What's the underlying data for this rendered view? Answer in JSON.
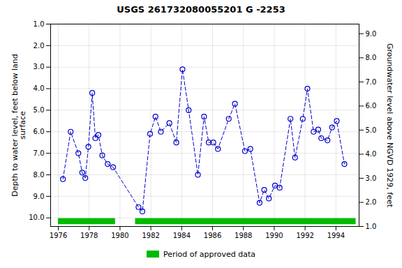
{
  "chart_data": {
    "type": "line",
    "title": "USGS 261732080055201 G  -2253",
    "ylabel": "Depth to water level, feet below land\nsurface",
    "y2label": "Groundwater level above NGVD 1929, feet",
    "x": [
      1976.3,
      1976.8,
      1977.3,
      1977.55,
      1977.75,
      1977.95,
      1978.2,
      1978.4,
      1978.6,
      1978.85,
      1979.2,
      1979.55,
      1981.2,
      1981.45,
      1981.95,
      1982.3,
      1982.65,
      1983.2,
      1983.65,
      1984.05,
      1984.45,
      1985.05,
      1985.45,
      1985.75,
      1986.05,
      1986.35,
      1987.05,
      1987.45,
      1988.1,
      1988.45,
      1989.05,
      1989.35,
      1989.65,
      1990.05,
      1990.35,
      1991.05,
      1991.35,
      1991.85,
      1992.15,
      1992.55,
      1992.85,
      1993.05,
      1993.45,
      1993.75,
      1994.05,
      1994.55
    ],
    "series": [
      {
        "type": "line",
        "color": "#0000cc",
        "marker": "circle",
        "line_style": "dashed",
        "values": [
          8.2,
          6.0,
          7.0,
          7.9,
          8.15,
          6.7,
          4.2,
          6.3,
          6.15,
          7.1,
          7.5,
          7.65,
          9.5,
          9.7,
          6.1,
          5.3,
          6.0,
          5.6,
          6.5,
          3.1,
          5.0,
          8.0,
          5.3,
          6.5,
          6.5,
          6.8,
          5.4,
          4.7,
          6.9,
          6.8,
          9.3,
          8.7,
          9.1,
          8.5,
          8.6,
          5.4,
          7.2,
          5.4,
          4.0,
          6.0,
          5.9,
          6.3,
          6.4,
          5.8,
          5.5,
          7.5
        ]
      },
      {
        "type": "range",
        "name": "Period of approved data",
        "color": "#00bb00",
        "ranges": [
          [
            1976.0,
            1979.7
          ],
          [
            1981.0,
            1995.3
          ]
        ],
        "y": 10.17,
        "height": 0.28
      }
    ],
    "xlim": [
      1975.5,
      1995.5
    ],
    "xticks": [
      1976,
      1978,
      1980,
      1982,
      1984,
      1986,
      1988,
      1990,
      1992,
      1994
    ],
    "ylim": [
      10.4,
      1.0
    ],
    "yticks": [
      {
        "value": 1.0,
        "label": "1.0"
      },
      {
        "value": 2.0,
        "label": "2.0"
      },
      {
        "value": 3.0,
        "label": "3.0"
      },
      {
        "value": 4.0,
        "label": "4.0"
      },
      {
        "value": 5.0,
        "label": "5.0"
      },
      {
        "value": 6.0,
        "label": "6.0"
      },
      {
        "value": 7.0,
        "label": "7.0"
      },
      {
        "value": 8.0,
        "label": "8.0"
      },
      {
        "value": 9.0,
        "label": "9.0"
      },
      {
        "value": 10.0,
        "label": "10.0"
      }
    ],
    "y2lim": [
      1.0,
      9.4
    ],
    "y2ticks": [
      {
        "value": 1.0,
        "label": "1.0"
      },
      {
        "value": 2.0,
        "label": "2.0"
      },
      {
        "value": 3.0,
        "label": "3.0"
      },
      {
        "value": 4.0,
        "label": "4.0"
      },
      {
        "value": 5.0,
        "label": "5.0"
      },
      {
        "value": 6.0,
        "label": "6.0"
      },
      {
        "value": 7.0,
        "label": "7.0"
      },
      {
        "value": 8.0,
        "label": "8.0"
      },
      {
        "value": 9.0,
        "label": "9.0"
      }
    ],
    "grid": true
  }
}
